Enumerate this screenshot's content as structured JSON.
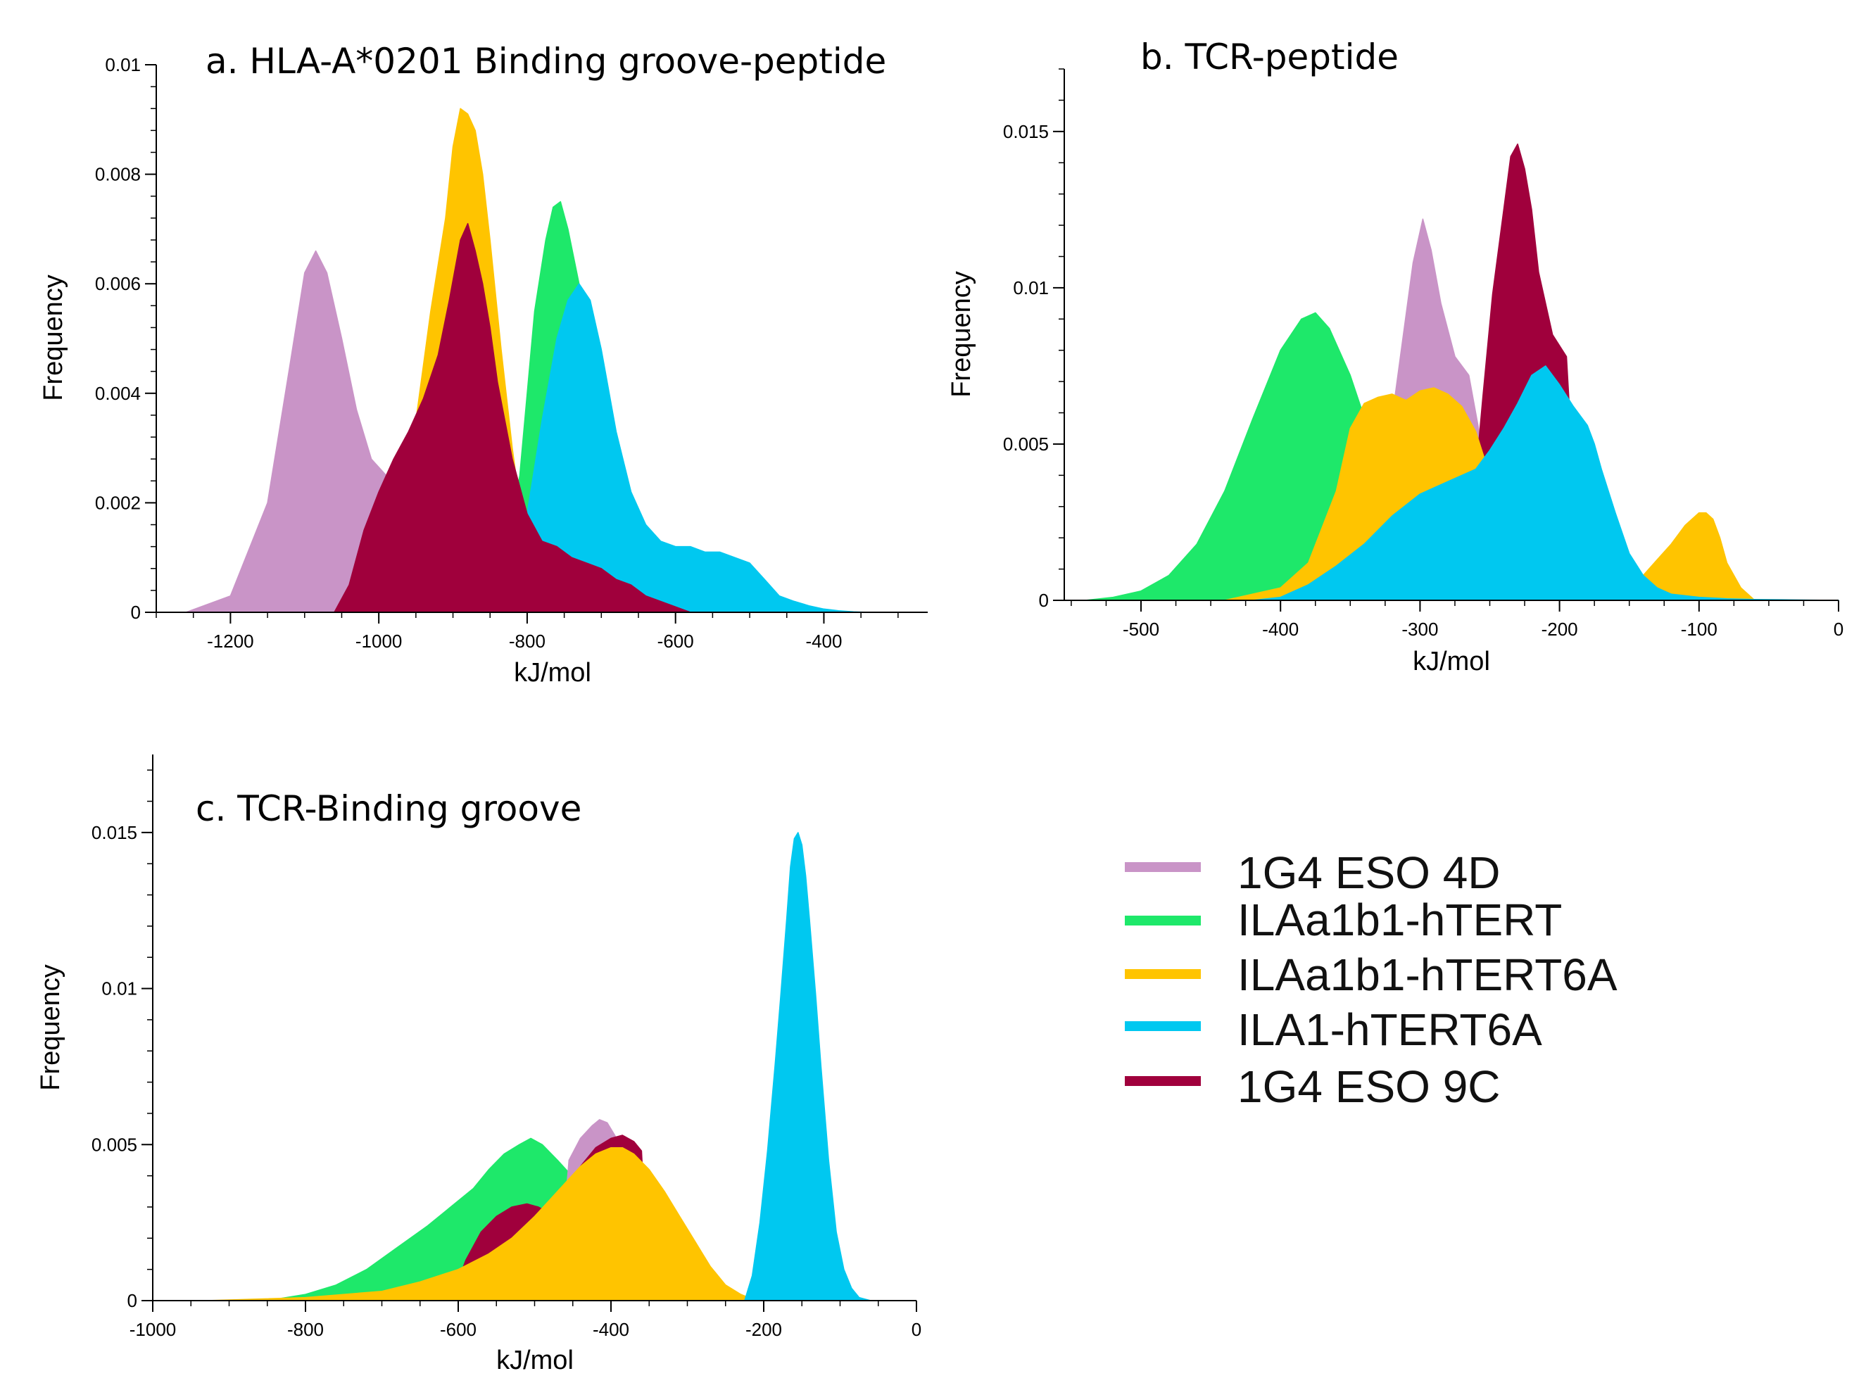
{
  "legend": [
    {
      "key": "eso4d",
      "label": "1G4 ESO 4D",
      "color": "#c994c7"
    },
    {
      "key": "hTERT",
      "label": "ILAa1b1-hTERT",
      "color": "#1ee86a"
    },
    {
      "key": "hTERT6A",
      "label": "ILAa1b1-hTERT6A",
      "color": "#ffc400"
    },
    {
      "key": "ila1",
      "label": "ILA1-hTERT6A",
      "color": "#00c8f0"
    },
    {
      "key": "eso9c",
      "label": "1G4 ESO 9C",
      "color": "#a0003c"
    }
  ],
  "chart_data": [
    {
      "id": "a",
      "type": "area",
      "title": "a. HLA-A*0201 Binding groove-peptide",
      "xlabel": "kJ/mol",
      "ylabel": "Frequency",
      "xlim": [
        -1300,
        -260
      ],
      "ylim": [
        0,
        0.01
      ],
      "xticks": [
        -1200,
        -1000,
        -800,
        -600,
        -400
      ],
      "xtick_labels": [
        "-1200",
        "-1000",
        "-800",
        "-600",
        "-400"
      ],
      "yticks": [
        0,
        0.002,
        0.004,
        0.006,
        0.008,
        0.01
      ],
      "ytick_labels": [
        "0",
        "0.002",
        "0.004",
        "0.006",
        "0.008",
        "0.01"
      ],
      "series": [
        {
          "key": "eso4d",
          "name": "1G4 ESO 4D",
          "x": [
            -1260,
            -1200,
            -1150,
            -1120,
            -1100,
            -1085,
            -1070,
            -1050,
            -1030,
            -1010,
            -990,
            -960,
            -940,
            -920,
            -900
          ],
          "y": [
            0,
            0.0003,
            0.002,
            0.0045,
            0.0062,
            0.0066,
            0.0062,
            0.005,
            0.0037,
            0.0028,
            0.0025,
            0.0025,
            0.002,
            0.0012,
            0
          ]
        },
        {
          "key": "hTERT6A",
          "name": "ILAa1b1-hTERT6A",
          "x": [
            -1000,
            -960,
            -930,
            -910,
            -900,
            -890,
            -880,
            -870,
            -860,
            -850,
            -835,
            -820,
            -800,
            -780
          ],
          "y": [
            0,
            0.0025,
            0.0055,
            0.0072,
            0.0085,
            0.0092,
            0.0091,
            0.0088,
            0.008,
            0.0068,
            0.0048,
            0.003,
            0.001,
            0
          ]
        },
        {
          "key": "hTERT",
          "name": "ILAa1b1-hTERT",
          "x": [
            -840,
            -810,
            -790,
            -775,
            -765,
            -755,
            -745,
            -730,
            -715,
            -700,
            -680,
            -660,
            -640,
            -620,
            -600
          ],
          "y": [
            0,
            0.0025,
            0.0055,
            0.0068,
            0.0074,
            0.0075,
            0.007,
            0.006,
            0.0048,
            0.0038,
            0.0028,
            0.002,
            0.0015,
            0.0008,
            0
          ]
        },
        {
          "key": "ila1",
          "name": "ILA1-hTERT6A",
          "x": [
            -830,
            -800,
            -780,
            -760,
            -745,
            -730,
            -715,
            -700,
            -680,
            -660,
            -640,
            -620,
            -600,
            -580,
            -560,
            -540,
            -520,
            -500,
            -480,
            -460,
            -440,
            -420,
            -400,
            -380,
            -360,
            -340
          ],
          "y": [
            0,
            0.0018,
            0.0035,
            0.005,
            0.0057,
            0.006,
            0.0057,
            0.0048,
            0.0033,
            0.0022,
            0.0016,
            0.0013,
            0.0012,
            0.0012,
            0.0011,
            0.0011,
            0.001,
            0.0009,
            0.0006,
            0.0003,
            0.0002,
            0.00012,
            6e-05,
            3e-05,
            1e-05,
            0
          ]
        },
        {
          "key": "eso9c",
          "name": "1G4 ESO 9C",
          "x": [
            -1060,
            -1040,
            -1020,
            -1000,
            -980,
            -960,
            -940,
            -920,
            -905,
            -890,
            -880,
            -870,
            -860,
            -850,
            -840,
            -820,
            -800,
            -780,
            -760,
            -740,
            -720,
            -700,
            -680,
            -660,
            -640,
            -620,
            -600,
            -580
          ],
          "y": [
            0,
            0.0005,
            0.0015,
            0.0022,
            0.0028,
            0.0033,
            0.0039,
            0.0047,
            0.0057,
            0.0068,
            0.0071,
            0.0066,
            0.006,
            0.0052,
            0.0042,
            0.0028,
            0.0018,
            0.0013,
            0.0012,
            0.001,
            0.0009,
            0.0008,
            0.0006,
            0.0005,
            0.0003,
            0.0002,
            0.0001,
            0
          ]
        }
      ]
    },
    {
      "id": "b",
      "type": "area",
      "title": "b. TCR-peptide",
      "xlabel": "kJ/mol",
      "ylabel": "Frequency",
      "xlim": [
        -555,
        0
      ],
      "ylim": [
        0,
        0.017
      ],
      "xticks": [
        -500,
        -400,
        -300,
        -200,
        -100,
        0
      ],
      "xtick_labels": [
        "-500",
        "-400",
        "-300",
        "-200",
        "-100",
        "0"
      ],
      "yticks": [
        0,
        0.005,
        0.01,
        0.015
      ],
      "ytick_labels": [
        "0",
        "0.005",
        "0.01",
        "0.015"
      ],
      "series": [
        {
          "key": "hTERT",
          "name": "ILAa1b1-hTERT",
          "x": [
            -540,
            -520,
            -500,
            -480,
            -460,
            -440,
            -420,
            -400,
            -385,
            -375,
            -365,
            -350,
            -335,
            -320,
            -310,
            -300
          ],
          "y": [
            0,
            0.0001,
            0.0003,
            0.0008,
            0.0018,
            0.0035,
            0.0058,
            0.008,
            0.009,
            0.0092,
            0.0087,
            0.0072,
            0.0052,
            0.002,
            0.0005,
            0
          ]
        },
        {
          "key": "eso4d",
          "name": "1G4 ESO 4D",
          "x": [
            -330,
            -318,
            -305,
            -298,
            -292,
            -285,
            -275,
            -265,
            -258,
            -250
          ],
          "y": [
            0,
            0.0065,
            0.0108,
            0.0122,
            0.0112,
            0.0095,
            0.0078,
            0.0072,
            0.0055,
            0
          ],
          "order": 0
        },
        {
          "key": "eso9c",
          "name": "1G4 ESO 9C",
          "x": [
            -270,
            -260,
            -255,
            -248,
            -240,
            -235,
            -230,
            -225,
            -220,
            -215,
            -205,
            -195,
            -185
          ],
          "y": [
            0,
            0.004,
            0.0065,
            0.0098,
            0.0125,
            0.0142,
            0.0146,
            0.0138,
            0.0125,
            0.0105,
            0.0085,
            0.0078,
            0
          ]
        },
        {
          "key": "hTERT6A",
          "name": "ILAa1b1-hTERT6A",
          "x": [
            -440,
            -420,
            -400,
            -380,
            -360,
            -350,
            -340,
            -330,
            -320,
            -310,
            -300,
            -290,
            -280,
            -270,
            -260,
            -250,
            -240,
            -230,
            -220,
            -210,
            -200,
            -190,
            -180,
            -170,
            -160,
            -150,
            -140,
            -130,
            -120,
            -110,
            -100,
            -95,
            -90,
            -85,
            -80,
            -70,
            -60
          ],
          "y": [
            0,
            0.0002,
            0.0004,
            0.0012,
            0.0035,
            0.0055,
            0.0063,
            0.0065,
            0.0066,
            0.0064,
            0.0067,
            0.0068,
            0.0066,
            0.0062,
            0.0054,
            0.004,
            0.0026,
            0.0016,
            0.0009,
            0.0006,
            0.0004,
            0.0003,
            0.0003,
            0.0003,
            0.0004,
            0.0005,
            0.0008,
            0.0013,
            0.0018,
            0.0024,
            0.0028,
            0.0028,
            0.0026,
            0.002,
            0.0012,
            0.0004,
            0
          ]
        },
        {
          "key": "ila1",
          "name": "ILA1-hTERT6A",
          "x": [
            -420,
            -400,
            -380,
            -360,
            -340,
            -320,
            -300,
            -280,
            -260,
            -250,
            -240,
            -230,
            -220,
            -210,
            -200,
            -190,
            -180,
            -175,
            -170,
            -160,
            -150,
            -140,
            -130,
            -120,
            -100,
            -80,
            -60,
            -40,
            -20,
            0
          ],
          "y": [
            0,
            0.0001,
            0.0005,
            0.0011,
            0.0018,
            0.0027,
            0.0034,
            0.0038,
            0.0042,
            0.0048,
            0.0055,
            0.0063,
            0.0072,
            0.0075,
            0.0069,
            0.0062,
            0.0056,
            0.005,
            0.0042,
            0.0028,
            0.0015,
            0.0008,
            0.0004,
            0.0002,
            0.0001,
            5e-05,
            3e-05,
            2e-05,
            1e-05,
            0
          ]
        }
      ]
    },
    {
      "id": "c",
      "type": "area",
      "title": "c. TCR-Binding groove",
      "xlabel": "kJ/mol",
      "ylabel": "Frequency",
      "xlim": [
        -1000,
        0
      ],
      "ylim": [
        0,
        0.0175
      ],
      "xticks": [
        -1000,
        -800,
        -600,
        -400,
        -200,
        0
      ],
      "xtick_labels": [
        "-1000",
        "-800",
        "-600",
        "-400",
        "-200",
        "0"
      ],
      "yticks": [
        0,
        0.005,
        0.01,
        0.015
      ],
      "ytick_labels": [
        "0",
        "0.005",
        "0.01",
        "0.015"
      ],
      "series": [
        {
          "key": "hTERT",
          "name": "ILAa1b1-hTERT",
          "x": [
            -850,
            -800,
            -760,
            -720,
            -680,
            -640,
            -610,
            -580,
            -560,
            -540,
            -520,
            -505,
            -490,
            -470,
            -455,
            -440,
            -420
          ],
          "y": [
            0,
            0.0002,
            0.0005,
            0.001,
            0.0017,
            0.0024,
            0.003,
            0.0036,
            0.0042,
            0.0047,
            0.005,
            0.0052,
            0.005,
            0.0045,
            0.0041,
            0.004,
            0
          ]
        },
        {
          "key": "eso4d",
          "name": "1G4 ESO 4D",
          "x": [
            -470,
            -455,
            -440,
            -425,
            -415,
            -405,
            -395,
            -385,
            -370
          ],
          "y": [
            0,
            0.0045,
            0.0052,
            0.0056,
            0.0058,
            0.0057,
            0.0053,
            0.0048,
            0
          ]
        },
        {
          "key": "eso9c",
          "name": "1G4 ESO 9C",
          "x": [
            -610,
            -590,
            -570,
            -550,
            -530,
            -510,
            -495,
            -480,
            -460,
            -440,
            -420,
            -400,
            -385,
            -370,
            -360,
            -350
          ],
          "y": [
            0,
            0.0013,
            0.0022,
            0.0027,
            0.003,
            0.0031,
            0.003,
            0.0028,
            0.0034,
            0.0043,
            0.0049,
            0.0052,
            0.0053,
            0.0051,
            0.0048,
            0
          ]
        },
        {
          "key": "hTERT6A",
          "name": "ILAa1b1-hTERT6A",
          "x": [
            -930,
            -800,
            -700,
            -650,
            -600,
            -560,
            -530,
            -500,
            -470,
            -440,
            -420,
            -400,
            -385,
            -370,
            -350,
            -330,
            -310,
            -290,
            -270,
            -250,
            -230,
            -215,
            -200
          ],
          "y": [
            0,
            0.0001,
            0.0003,
            0.0006,
            0.001,
            0.0015,
            0.002,
            0.0027,
            0.0035,
            0.0043,
            0.0047,
            0.0049,
            0.0049,
            0.0047,
            0.0042,
            0.0035,
            0.0027,
            0.0019,
            0.0011,
            0.0005,
            0.0002,
            5e-05,
            0
          ]
        },
        {
          "key": "ila1",
          "name": "ILA1-hTERT6A",
          "x": [
            -225,
            -215,
            -205,
            -195,
            -185,
            -178,
            -170,
            -165,
            -160,
            -155,
            -150,
            -145,
            -140,
            -132,
            -125,
            -115,
            -105,
            -95,
            -85,
            -75,
            -60
          ],
          "y": [
            0,
            0.0008,
            0.0025,
            0.0048,
            0.0076,
            0.0097,
            0.0122,
            0.0139,
            0.0148,
            0.015,
            0.0146,
            0.0136,
            0.0122,
            0.0098,
            0.0075,
            0.0045,
            0.0022,
            0.001,
            0.0004,
            0.0001,
            0
          ]
        }
      ]
    }
  ]
}
